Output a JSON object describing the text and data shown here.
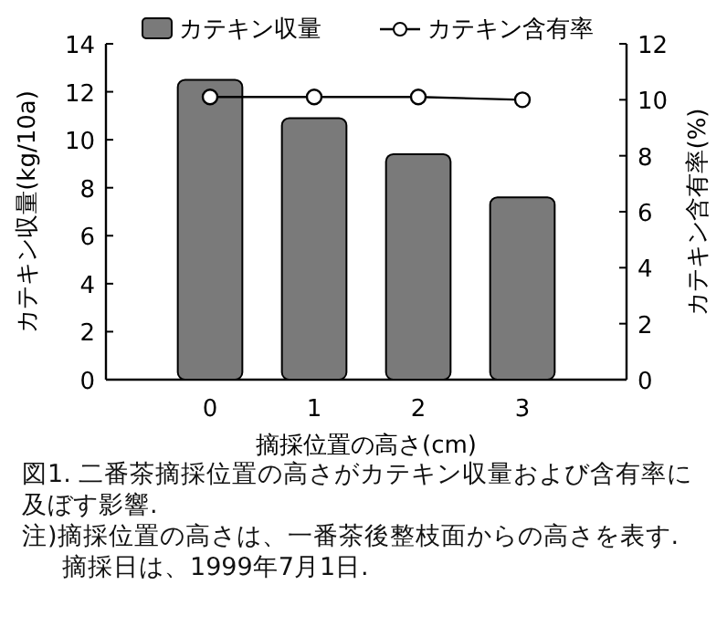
{
  "chart_data": {
    "type": "bar",
    "title": "図1. 二番茶摘採位置の高さがカテキン収量および含有率に及ぼす影響.",
    "xlabel": "摘採位置の高さ(cm)",
    "ylabel": "カテキン収量(kg/10a)",
    "y2label": "カテキン含有率(%)",
    "categories": [
      "0",
      "1",
      "2",
      "3"
    ],
    "series": [
      {
        "name": "カテキン収量",
        "color": "#7a7a7a",
        "values": [
          12.5,
          10.9,
          9.4,
          7.6
        ]
      },
      {
        "name": "カテキン含有率",
        "type": "line",
        "axis": "y2",
        "color": "#000000",
        "marker": "circle",
        "values": [
          10.1,
          10.1,
          10.1,
          10.0
        ]
      }
    ],
    "ylim": [
      0,
      14
    ],
    "yticks": [
      0,
      2,
      4,
      6,
      8,
      10,
      12,
      14
    ],
    "y2lim": [
      0,
      12
    ],
    "y2ticks": [
      0,
      2,
      4,
      6,
      8,
      10,
      12
    ],
    "legend": "top",
    "grid": false,
    "annotations": [
      "注)摘採位置の高さは、一番茶後整枝面からの高さを表す.",
      "摘採日は、1999年7月1日."
    ]
  }
}
